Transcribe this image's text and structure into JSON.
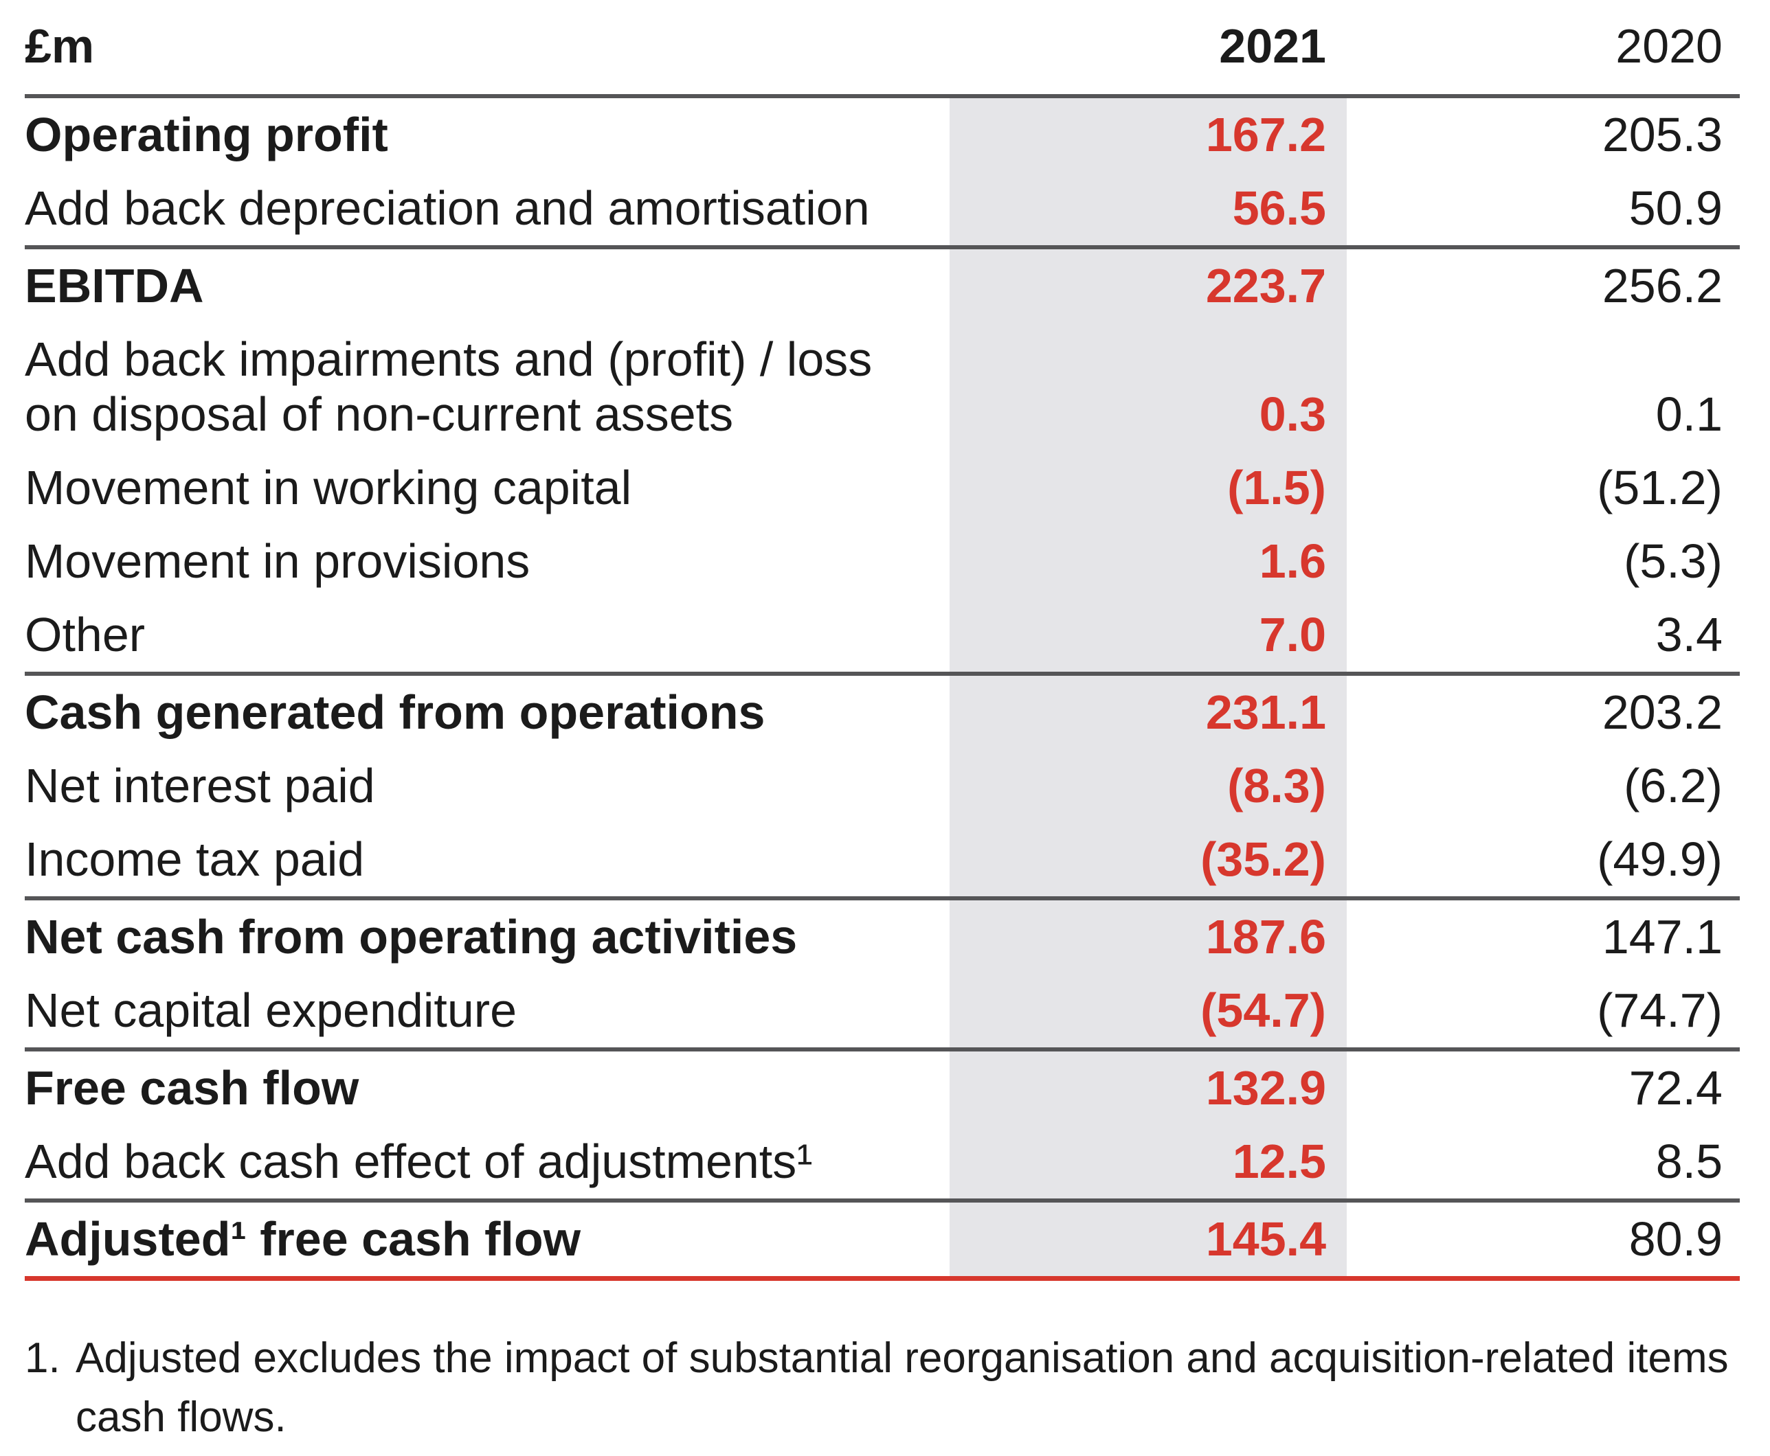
{
  "table": {
    "unit_label": "£m",
    "col_2021": "2021",
    "col_2020": "2020",
    "rows": [
      {
        "label": "Operating profit",
        "v2021": "167.2",
        "v2020": "205.3",
        "emphasis": true,
        "rule_above": false
      },
      {
        "label": "Add back depreciation and amortisation",
        "v2021": "56.5",
        "v2020": "50.9",
        "emphasis": false,
        "rule_above": false
      },
      {
        "label": "EBITDA",
        "v2021": "223.7",
        "v2020": "256.2",
        "emphasis": true,
        "rule_above": true
      },
      {
        "label": "Add back impairments and (profit) / loss\non disposal of non-current assets",
        "v2021": "0.3",
        "v2020": "0.1",
        "emphasis": false,
        "rule_above": false
      },
      {
        "label": "Movement in working capital",
        "v2021": "(1.5)",
        "v2020": "(51.2)",
        "emphasis": false,
        "rule_above": false
      },
      {
        "label": "Movement in provisions",
        "v2021": "1.6",
        "v2020": "(5.3)",
        "emphasis": false,
        "rule_above": false
      },
      {
        "label": "Other",
        "v2021": "7.0",
        "v2020": "3.4",
        "emphasis": false,
        "rule_above": false
      },
      {
        "label": "Cash generated from operations",
        "v2021": "231.1",
        "v2020": "203.2",
        "emphasis": true,
        "rule_above": true
      },
      {
        "label": "Net interest paid",
        "v2021": "(8.3)",
        "v2020": "(6.2)",
        "emphasis": false,
        "rule_above": false
      },
      {
        "label": "Income tax paid",
        "v2021": "(35.2)",
        "v2020": "(49.9)",
        "emphasis": false,
        "rule_above": false
      },
      {
        "label": "Net cash from operating activities",
        "v2021": "187.6",
        "v2020": "147.1",
        "emphasis": true,
        "rule_above": true
      },
      {
        "label": "Net capital expenditure",
        "v2021": "(54.7)",
        "v2020": "(74.7)",
        "emphasis": false,
        "rule_above": false
      },
      {
        "label": "Free cash flow",
        "v2021": "132.9",
        "v2020": "72.4",
        "emphasis": true,
        "rule_above": true
      },
      {
        "label": "Add back cash effect of adjustments¹",
        "v2021": "12.5",
        "v2020": "8.5",
        "emphasis": false,
        "rule_above": false
      },
      {
        "label": "Adjusted¹ free cash flow",
        "v2021": "145.4",
        "v2020": "80.9",
        "emphasis": true,
        "rule_above": true
      }
    ],
    "footnote": {
      "marker": "1.",
      "text": "Adjusted excludes the impact of substantial reorganisation and acquisition-related items\ncash flows."
    }
  },
  "colors": {
    "accent_red": "#d7372d",
    "highlight_column_bg": "#e5e5e8",
    "rule_dark": "#555557",
    "text": "#1b1b1b"
  }
}
